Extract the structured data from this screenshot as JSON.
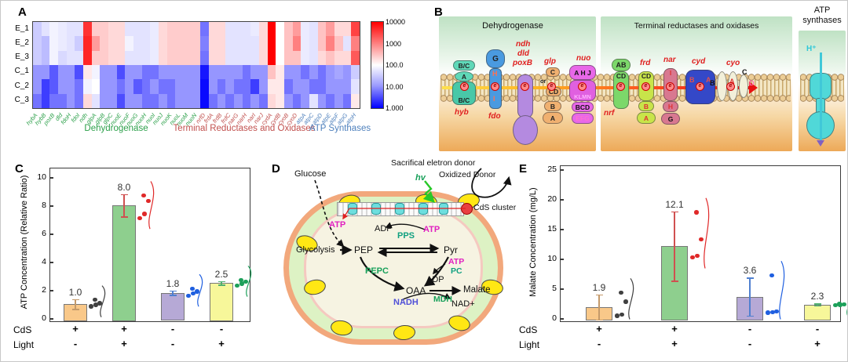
{
  "colors": {
    "group_green": "#2ca04a",
    "group_red": "#c1504e",
    "group_blue": "#4f81bd",
    "bar_colors": [
      "#f9c889",
      "#8ecf8e",
      "#b6a9d6",
      "#f7f79a"
    ],
    "point_colors": [
      "#404040",
      "#e02929",
      "#1f5fe0",
      "#1da05a"
    ],
    "err_colors": [
      "#c49a6a",
      "#d05050",
      "#5080d0",
      "#50b070"
    ],
    "heat_max": "#ff0000",
    "heat_min": "#0000ff"
  },
  "panels": {
    "a": {
      "label": "A"
    },
    "b": {
      "label": "B",
      "title_deh": "Dehydrogenase",
      "title_term": "Terminal reductases and oxidases",
      "atp_title1": "ATP",
      "atp_title2": "synthases",
      "e_label": "e",
      "hyb": {
        "top1": "B/C",
        "top2": "A",
        "mem": "B/C",
        "name": "hyb"
      },
      "fdo": {
        "top": "G",
        "m1": "H",
        "m2": "I",
        "name": "fdo"
      },
      "ndh": {
        "l1": "ndh",
        "l2": "dld",
        "l3": "poxB"
      },
      "glp": {
        "name": "glp",
        "t": "C",
        "or_txt": "or",
        "cd": "CD",
        "b": "B",
        "a": "A"
      },
      "nuo": {
        "name": "nuo",
        "top": "A H J",
        "mid": "KLMN",
        "b1": "BCD",
        "b2": "EFG"
      },
      "nrf": {
        "name": "nrf",
        "ab": "AB",
        "cd": "CD"
      },
      "frd": {
        "name": "frd",
        "cd": "CD",
        "b": "B",
        "a": "A"
      },
      "nar": {
        "name": "nar",
        "i": "I",
        "h": "H",
        "g": "G"
      },
      "cyd": {
        "name": "cyd",
        "b": "B",
        "a": "A"
      },
      "cyo": {
        "name": "cyo",
        "b": "B",
        "a": "A",
        "c": "C",
        "d": "D"
      },
      "atp": {
        "hplus": "H⁺"
      }
    },
    "c": {
      "label": "C",
      "cds_label": "CdS",
      "light_label": "Light"
    },
    "d": {
      "label": "D",
      "glucose": "Glucose",
      "glycolysis": "Glycolysis",
      "pep": "PEP",
      "pyr": "Pyr",
      "pps": "PPS",
      "adp1": "ADP",
      "atp1": "ATP",
      "pepc": "PEPC",
      "atp2": "ATP",
      "pc": "PC",
      "adp2": "ADP",
      "oaa": "OAA",
      "malate": "Malate",
      "mdh": "MDH",
      "nadh": "NADH",
      "nad": "NAD+",
      "hv": "hv",
      "donor": "Sacrifical eletron donor",
      "oxidized": "Oxidized Donor",
      "cds_cluster": "CdS cluster",
      "atp_mem": "ATP"
    },
    "e": {
      "label": "E",
      "cds_label": "CdS",
      "light_label": "Light"
    }
  },
  "chart_data": [
    {
      "type": "heatmap",
      "rows": [
        "E_1",
        "E_2",
        "E_3",
        "C_1",
        "C_2",
        "C_3"
      ],
      "columns": [
        "hybA",
        "hybB",
        "poxB",
        "dld",
        "fdoH",
        "fdoI",
        "ndh",
        "glpA",
        "glpB",
        "glpC",
        "nuoE",
        "nuoF",
        "nuoG",
        "nuoH",
        "nuoI",
        "nuoJ",
        "nuoK",
        "nuoL",
        "nuoM",
        "nuoN",
        "nrfD",
        "frdA",
        "frdB",
        "frdC",
        "narG",
        "narH",
        "narI",
        "narJ",
        "cydA",
        "cydB",
        "cyoB",
        "cyoD",
        "atpA",
        "atpC",
        "atpD",
        "atpE",
        "atpF",
        "atpG",
        "atpH"
      ],
      "column_groups": [
        {
          "label": "Dehydrogenase",
          "color": "#2ca04a",
          "count": 20
        },
        {
          "label": "Terminal Reductases and Oxidases",
          "color": "#c1504e",
          "count": 12
        },
        {
          "label": "ATP Synthases",
          "color": "#4f81bd",
          "count": 7
        }
      ],
      "scale": "log10",
      "range": [
        1,
        10000
      ],
      "colorbar_ticks": [
        "10000",
        "1000",
        "100.0",
        "10.00",
        "1.000"
      ],
      "values": [
        [
          40,
          60,
          80,
          70,
          60,
          60,
          4000,
          250,
          250,
          200,
          200,
          60,
          60,
          60,
          70,
          200,
          250,
          250,
          250,
          250,
          8,
          200,
          200,
          60,
          60,
          60,
          70,
          200,
          10000,
          100,
          300,
          600,
          70,
          60,
          300,
          600,
          200,
          200,
          3000
        ],
        [
          40,
          30,
          80,
          70,
          60,
          40,
          5000,
          600,
          250,
          200,
          200,
          80,
          60,
          60,
          70,
          200,
          250,
          250,
          250,
          250,
          10,
          200,
          200,
          60,
          60,
          60,
          60,
          200,
          10000,
          100,
          300,
          1000,
          70,
          60,
          300,
          1000,
          300,
          60,
          1000
        ],
        [
          40,
          30,
          80,
          50,
          60,
          60,
          5000,
          250,
          250,
          200,
          200,
          60,
          60,
          60,
          70,
          200,
          250,
          250,
          250,
          250,
          8,
          200,
          200,
          60,
          60,
          60,
          60,
          200,
          10000,
          100,
          300,
          300,
          70,
          60,
          200,
          300,
          200,
          200,
          2000
        ],
        [
          15,
          15,
          5,
          15,
          15,
          4,
          150,
          80,
          15,
          15,
          4,
          15,
          15,
          8,
          8,
          15,
          15,
          15,
          15,
          15,
          1.5,
          15,
          15,
          15,
          15,
          8,
          15,
          15,
          300,
          150,
          15,
          15,
          8,
          15,
          8,
          15,
          20,
          15,
          40
        ],
        [
          15,
          3,
          5,
          15,
          15,
          8,
          80,
          100,
          15,
          15,
          8,
          15,
          5,
          8,
          15,
          8,
          8,
          15,
          15,
          15,
          1.2,
          15,
          8,
          15,
          8,
          8,
          3,
          15,
          150,
          150,
          8,
          15,
          15,
          8,
          8,
          15,
          15,
          15,
          60
        ],
        [
          8,
          3,
          8,
          8,
          15,
          8,
          200,
          60,
          15,
          15,
          4,
          15,
          15,
          8,
          8,
          15,
          8,
          15,
          15,
          15,
          1.2,
          8,
          15,
          8,
          15,
          8,
          15,
          8,
          200,
          150,
          15,
          8,
          15,
          60,
          15,
          8,
          15,
          8,
          150
        ]
      ]
    },
    {
      "type": "bar",
      "ylabel": "ATP Concentration (Relative Ratio)",
      "ylim": [
        0,
        10
      ],
      "yticks": [
        0,
        2,
        4,
        6,
        8,
        10
      ],
      "categories": [
        "CdS+ Light-",
        "CdS+ Light+",
        "CdS- Light-",
        "CdS- Light+"
      ],
      "values": [
        1.0,
        8.0,
        1.8,
        2.5
      ],
      "errors": [
        0.35,
        0.8,
        0.15,
        0.12
      ],
      "labels": [
        "1.0",
        "8.0",
        "1.8",
        "2.5"
      ],
      "points": [
        [
          0.85,
          0.95,
          1.05,
          1.3
        ],
        [
          7.1,
          7.4,
          8.3,
          8.7
        ],
        [
          1.6,
          1.75,
          1.9,
          2.1
        ],
        [
          2.3,
          2.45,
          2.6,
          2.7
        ]
      ],
      "cds": [
        "+",
        "+",
        "-",
        "-"
      ],
      "light": [
        "-",
        "+",
        "-",
        "+"
      ]
    },
    {
      "type": "bar",
      "ylabel": "Malate Concentration (mg/L)",
      "ylim": [
        0,
        25
      ],
      "yticks": [
        0,
        5,
        10,
        15,
        20,
        25
      ],
      "categories": [
        "CdS+ Light-",
        "CdS+ Light+",
        "CdS- Light-",
        "CdS- Light+"
      ],
      "values": [
        1.9,
        12.1,
        3.6,
        2.3
      ],
      "errors": [
        2.1,
        5.8,
        3.2,
        0.15
      ],
      "labels": [
        "1.9",
        "12.1",
        "3.6",
        "2.3"
      ],
      "points": [
        [
          0.4,
          0.6,
          2.8,
          4.3
        ],
        [
          10.2,
          10.5,
          13.2,
          17.8
        ],
        [
          0.9,
          1.0,
          1.1,
          7.2
        ],
        [
          2.2,
          2.25,
          2.3,
          2.4
        ]
      ],
      "cds": [
        "+",
        "+",
        "-",
        "-"
      ],
      "light": [
        "-",
        "+",
        "-",
        "+"
      ]
    }
  ]
}
